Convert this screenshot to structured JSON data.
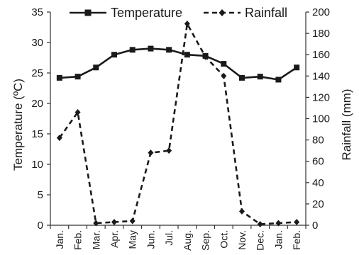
{
  "chart_data": {
    "type": "line",
    "categories": [
      "Jan.",
      "Feb.",
      "Mar.",
      "Apr.",
      "May",
      "Jun.",
      "Jul.",
      "Aug.",
      "Sep.",
      "Oct.",
      "Nov.",
      "Dec.",
      "Jan.",
      "Feb."
    ],
    "series": [
      {
        "name": "Temperature",
        "axis": "left",
        "style": "solid",
        "marker": "square",
        "color": "#1a1a1a",
        "values": [
          24.2,
          24.4,
          25.9,
          28.0,
          28.8,
          29.0,
          28.8,
          28.0,
          27.8,
          26.5,
          24.2,
          24.4,
          23.9,
          25.9
        ]
      },
      {
        "name": "Rainfall",
        "axis": "right",
        "style": "dashed",
        "marker": "diamond",
        "color": "#1a1a1a",
        "values": [
          82,
          106,
          2,
          3,
          4,
          68,
          70,
          189,
          158,
          140,
          13,
          1,
          2,
          3
        ]
      }
    ],
    "ylabel_left": "Temperature (ºC)",
    "ylabel_right": "Rainfall (mm)",
    "ylim_left": [
      0,
      35
    ],
    "yticks_left": [
      0,
      5,
      10,
      15,
      20,
      25,
      30,
      35
    ],
    "ylim_right": [
      0,
      200
    ],
    "yticks_right": [
      0,
      20,
      40,
      60,
      80,
      100,
      120,
      140,
      160,
      180,
      200
    ],
    "grid": false,
    "legend_position": "top"
  }
}
